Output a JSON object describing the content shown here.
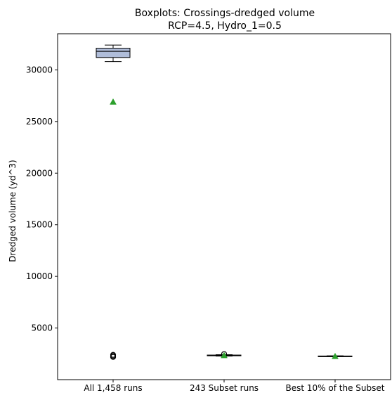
{
  "chart_data": {
    "type": "box",
    "title": "Boxplots: Crossings-dredged volume",
    "subtitle": "RCP=4.5, Hydro_1=0.5",
    "xlabel": "",
    "ylabel": "Dredged volume (yd^3)",
    "ylim": [
      0,
      33500
    ],
    "yticks": [
      5000,
      10000,
      15000,
      20000,
      25000,
      30000
    ],
    "categories": [
      "All 1,458 runs",
      "243 Subset runs",
      "Best 10% of the Subset"
    ],
    "boxes": [
      {
        "category": "All 1,458 runs",
        "whisker_low": 30800,
        "q1": 31200,
        "median": 31800,
        "q3": 32100,
        "whisker_high": 32400,
        "mean": 26900,
        "outliers": [
          2200,
          2300,
          2400
        ]
      },
      {
        "category": "243 Subset runs",
        "whisker_low": 2280,
        "q1": 2320,
        "median": 2350,
        "q3": 2380,
        "whisker_high": 2420,
        "mean": 2350,
        "outliers": [
          2480
        ]
      },
      {
        "category": "Best 10% of the Subset",
        "whisker_low": 2230,
        "q1": 2250,
        "median": 2270,
        "q3": 2290,
        "whisker_high": 2310,
        "mean": 2260,
        "outliers": []
      }
    ],
    "colors": {
      "box_fill": "#b0bdd9",
      "box_edge": "#000000",
      "median": "#000000",
      "mean_marker": "#2ca02c"
    },
    "grid": false,
    "legend": "none"
  }
}
